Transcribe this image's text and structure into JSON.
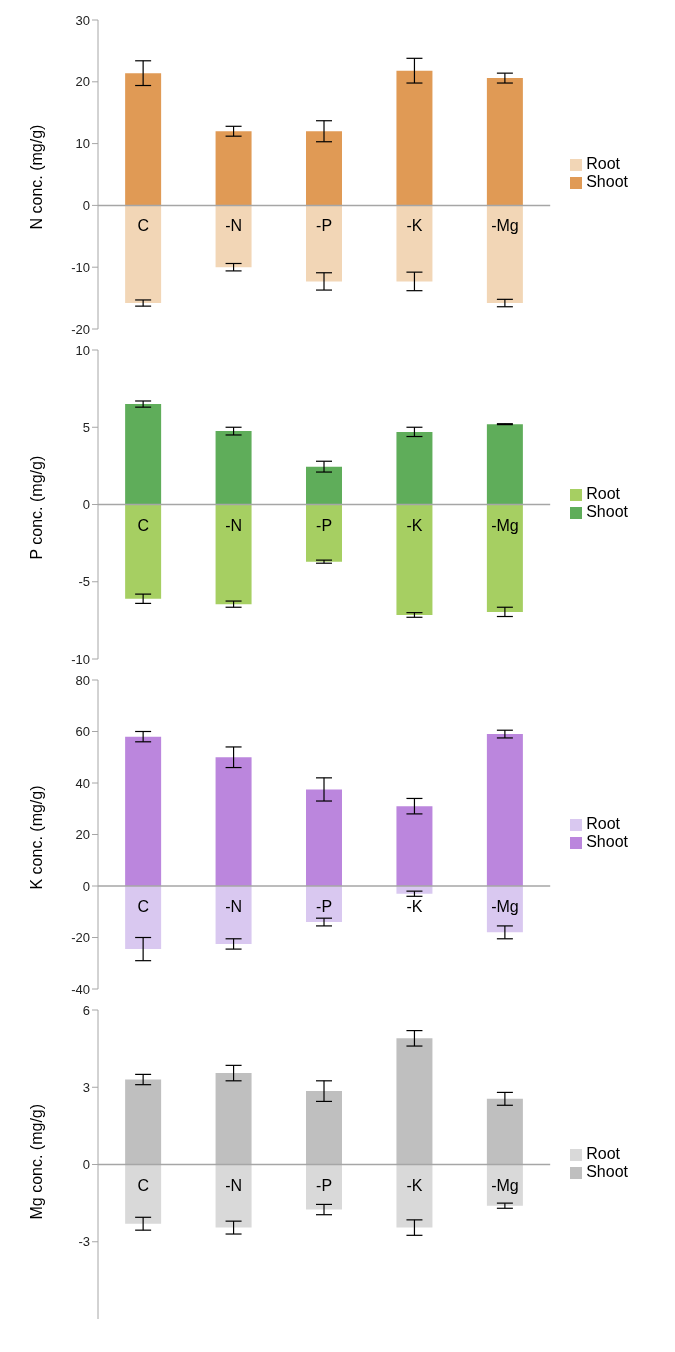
{
  "chart_data": [
    {
      "type": "bar",
      "ylabel": "N conc. (mg/g)",
      "categories": [
        "C",
        "-N",
        "-P",
        "-K",
        "-Mg"
      ],
      "stacked": true,
      "legend": "right",
      "ylim": [
        -20,
        30
      ],
      "yticks": [
        -20,
        -10,
        0,
        10,
        20,
        30
      ],
      "series": [
        {
          "name": "Shoot",
          "color": "#e09a55",
          "values": [
            21.4,
            12,
            12,
            21.8,
            20.6
          ],
          "errors": [
            2,
            0.8,
            1.7,
            2,
            0.8
          ]
        },
        {
          "name": "Root",
          "color": "#f2d6b6",
          "values": [
            -15.8,
            -10,
            -12.3,
            -12.3,
            -15.8
          ],
          "errors": [
            0.5,
            0.6,
            1.4,
            1.5,
            0.6
          ]
        }
      ]
    },
    {
      "type": "bar",
      "ylabel": "P conc. (mg/g)",
      "categories": [
        "C",
        "-N",
        "-P",
        "-K",
        "-Mg"
      ],
      "stacked": true,
      "legend": "right",
      "ylim": [
        -10,
        10
      ],
      "yticks": [
        -10,
        -5,
        0,
        5,
        10
      ],
      "series": [
        {
          "name": "Shoot",
          "color": "#5fad5a",
          "values": [
            6.5,
            4.75,
            2.45,
            4.7,
            5.2
          ],
          "errors": [
            0.2,
            0.25,
            0.35,
            0.3,
            0.03
          ]
        },
        {
          "name": "Root",
          "color": "#a6cf62",
          "values": [
            -6.1,
            -6.45,
            -3.7,
            -7.15,
            -6.95
          ],
          "errors": [
            0.3,
            0.2,
            0.1,
            0.15,
            0.3
          ]
        }
      ]
    },
    {
      "type": "bar",
      "ylabel": "K conc. (mg/g)",
      "categories": [
        "C",
        "-N",
        "-P",
        "-K",
        "-Mg"
      ],
      "stacked": true,
      "legend": "right",
      "ylim": [
        -40,
        80
      ],
      "yticks": [
        -40,
        -20,
        0,
        20,
        40,
        60,
        80
      ],
      "series": [
        {
          "name": "Shoot",
          "color": "#bb86dd",
          "values": [
            58,
            50,
            37.5,
            31,
            59
          ],
          "errors": [
            2,
            4,
            4.5,
            3,
            1.5
          ]
        },
        {
          "name": "Root",
          "color": "#d9c8f0",
          "values": [
            -24.5,
            -22.5,
            -14,
            -3,
            -18
          ],
          "errors": [
            4.5,
            2,
            1.5,
            1,
            2.5
          ]
        }
      ]
    },
    {
      "type": "bar",
      "ylabel": "Mg conc. (mg/g)",
      "categories": [
        "C",
        "-N",
        "-P",
        "-K",
        "-Mg"
      ],
      "stacked": true,
      "legend": "right",
      "ylim": [
        -6,
        6
      ],
      "yticks": [
        -3,
        0,
        3,
        6
      ],
      "series": [
        {
          "name": "Shoot",
          "color": "#bfbfbf",
          "values": [
            3.3,
            3.55,
            2.85,
            4.9,
            2.55
          ],
          "errors": [
            0.2,
            0.3,
            0.4,
            0.3,
            0.25
          ]
        },
        {
          "name": "Root",
          "color": "#d9d9d9",
          "values": [
            -2.3,
            -2.45,
            -1.75,
            -2.45,
            -1.6
          ],
          "errors": [
            0.25,
            0.25,
            0.2,
            0.3,
            0.1
          ]
        }
      ]
    }
  ]
}
